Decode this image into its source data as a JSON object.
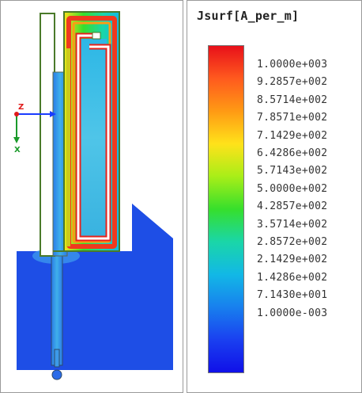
{
  "legend": {
    "title": "Jsurf[A_per_m]",
    "ticks": [
      "1.0000e+003",
      "9.2857e+002",
      "8.5714e+002",
      "7.8571e+002",
      "7.1429e+002",
      "6.4286e+002",
      "5.7143e+002",
      "5.0000e+002",
      "4.2857e+002",
      "3.5714e+002",
      "2.8572e+002",
      "2.1429e+002",
      "1.4286e+002",
      "7.1430e+001",
      "1.0000e-003"
    ],
    "gradient_colors": [
      "#e8101a",
      "#ff5a1e",
      "#ff9a14",
      "#ffe21a",
      "#a8ee18",
      "#36df2c",
      "#1ad6a8",
      "#12b8e6",
      "#1880ee",
      "#1a40f0",
      "#1010e8"
    ]
  },
  "axes": {
    "z_label": "Z",
    "x_label": "X",
    "x_color": "#1a9a2a",
    "y_color": "#1a3cff",
    "z_color": "#e01a1a"
  },
  "model_colors": {
    "ground": "#1e4ee6",
    "low_current": "#3b7bf0",
    "high_current": "#e8211a",
    "strip_outline": "#4a6a2a"
  }
}
